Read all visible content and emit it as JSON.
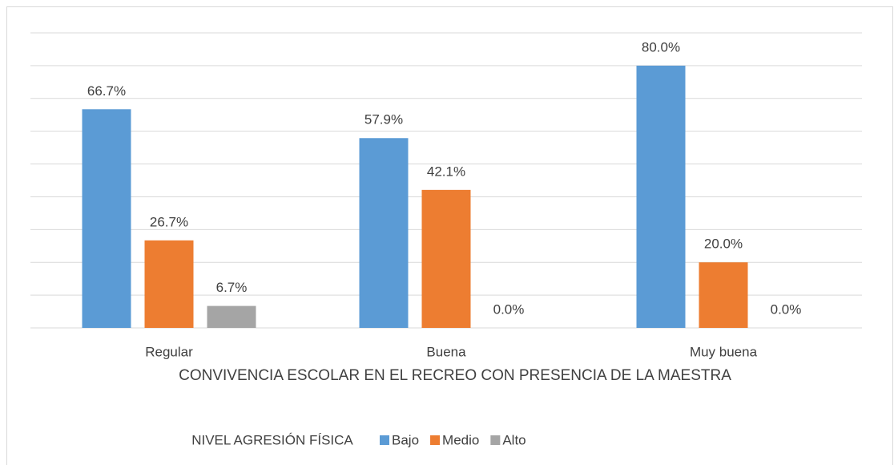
{
  "chart_data": {
    "type": "bar",
    "x_label": "CONVIVENCIA ESCOLAR EN EL RECREO CON PRESENCIA DE LA MAESTRA",
    "legend_title": "NIVEL AGRESIÓN FÍSICA",
    "categories": [
      "Regular",
      "Buena",
      "Muy buena"
    ],
    "series": [
      {
        "name": "Bajo",
        "color": "#5b9bd5",
        "values": [
          66.7,
          57.9,
          80.0
        ],
        "value_labels": [
          "66.7%",
          "57.9%",
          "80.0%"
        ]
      },
      {
        "name": "Medio",
        "color": "#ed7d31",
        "values": [
          26.7,
          42.1,
          20.0
        ],
        "value_labels": [
          "26.7%",
          "42.1%",
          "20.0%"
        ]
      },
      {
        "name": "Alto",
        "color": "#a5a5a5",
        "values": [
          6.7,
          0.0,
          0.0
        ],
        "value_labels": [
          "6.7%",
          "0.0%",
          "0.0%"
        ]
      }
    ],
    "ylim": [
      0,
      90
    ],
    "yticks": [
      0,
      10,
      20,
      30,
      40,
      50,
      60,
      70,
      80,
      90
    ],
    "grid": true,
    "legend": "bottom"
  }
}
